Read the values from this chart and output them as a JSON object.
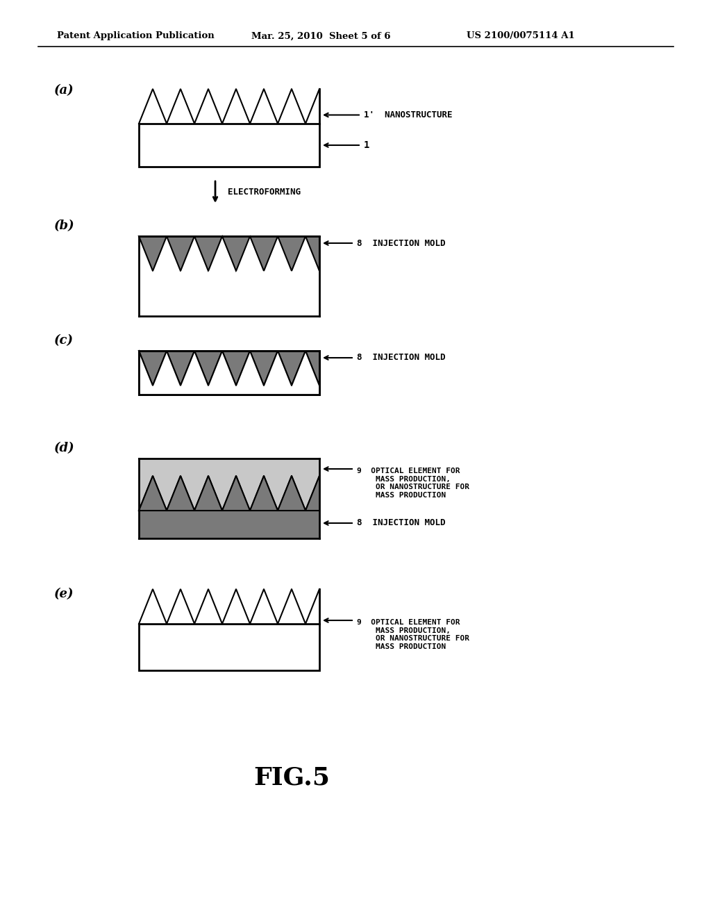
{
  "header_left": "Patent Application Publication",
  "header_mid": "Mar. 25, 2010  Sheet 5 of 6",
  "header_right": "US 2100/0075114 A1",
  "fig_label": "FIG.5",
  "bg_color": "#ffffff",
  "dark_gray": "#7a7a7a",
  "black": "#000000",
  "panels": [
    "(a)",
    "(b)",
    "(c)",
    "(d)",
    "(e)"
  ],
  "electroforming_label": "ELECTROFORMING",
  "label_1prime": "1'  NANOSTRUCTURE",
  "label_1": "1",
  "label_8": "8  INJECTION MOLD",
  "label_9_top": "9  OPTICAL ELEMENT FOR\n    MASS PRODUCTION,\n    OR NANOSTRUCTURE FOR\n    MASS PRODUCTION",
  "label_9_bot_8": "8  INJECTION MOLD",
  "label_9e": "9  OPTICAL ELEMENT FOR\n    MASS PRODUCTION,\n    OR NANOSTRUCTURE FOR\n    MASS PRODUCTION"
}
